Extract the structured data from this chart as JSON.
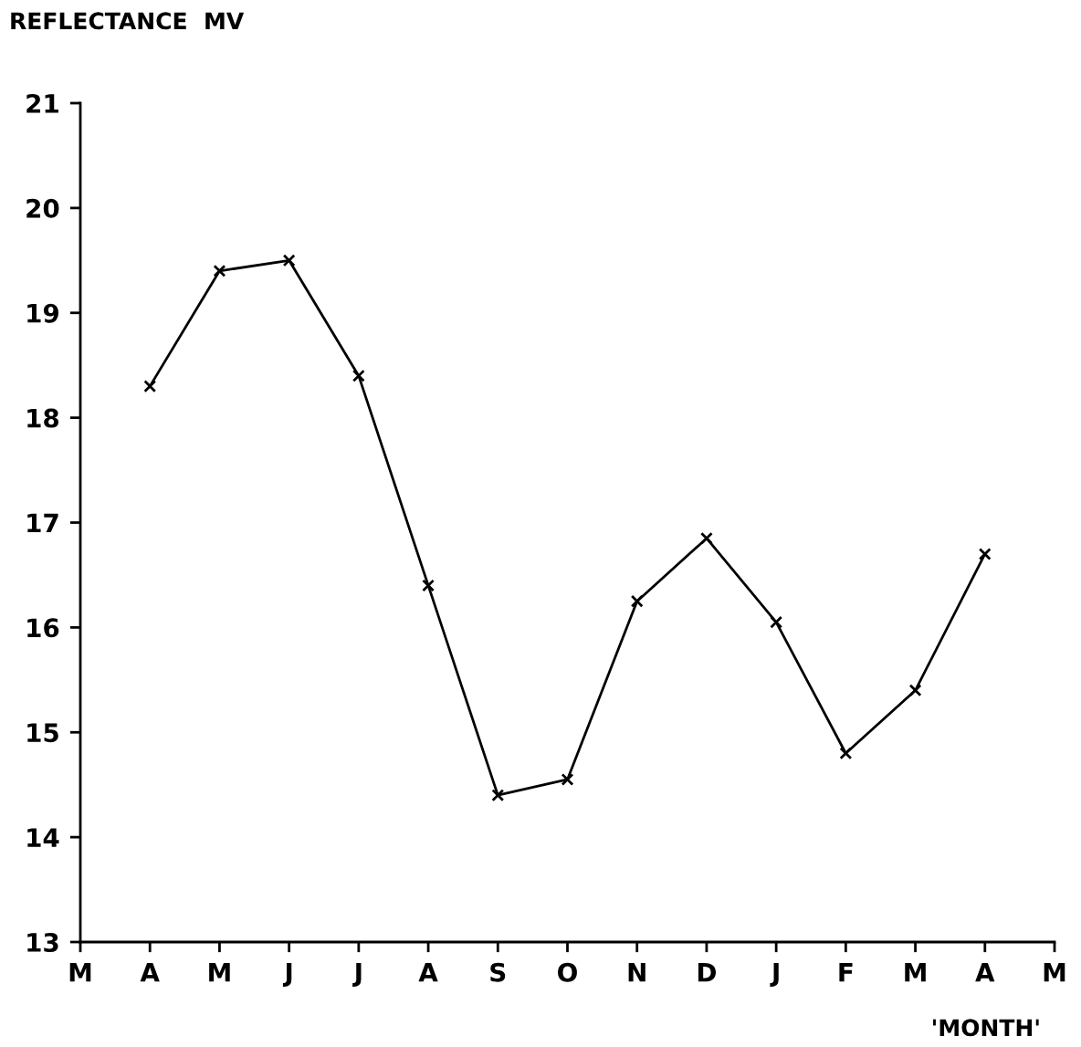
{
  "chart_data": {
    "type": "line",
    "ylabel": "REFLECTANCE  MV",
    "xlabel": "'MONTH'",
    "categories": [
      "M",
      "A",
      "M",
      "J",
      "J",
      "A",
      "S",
      "O",
      "N",
      "D",
      "J",
      "F",
      "M",
      "A",
      "M"
    ],
    "series": [
      {
        "color": "#000000",
        "values": [
          null,
          18.3,
          19.4,
          19.5,
          18.4,
          16.4,
          14.4,
          14.55,
          16.25,
          16.85,
          16.05,
          14.8,
          15.4,
          16.7,
          null
        ]
      }
    ],
    "ylim": [
      13,
      21
    ],
    "yticks": [
      13,
      14,
      15,
      16,
      17,
      18,
      19,
      20,
      21
    ],
    "grid": false,
    "legend": false,
    "marker": "cross",
    "line_style": "solid"
  }
}
